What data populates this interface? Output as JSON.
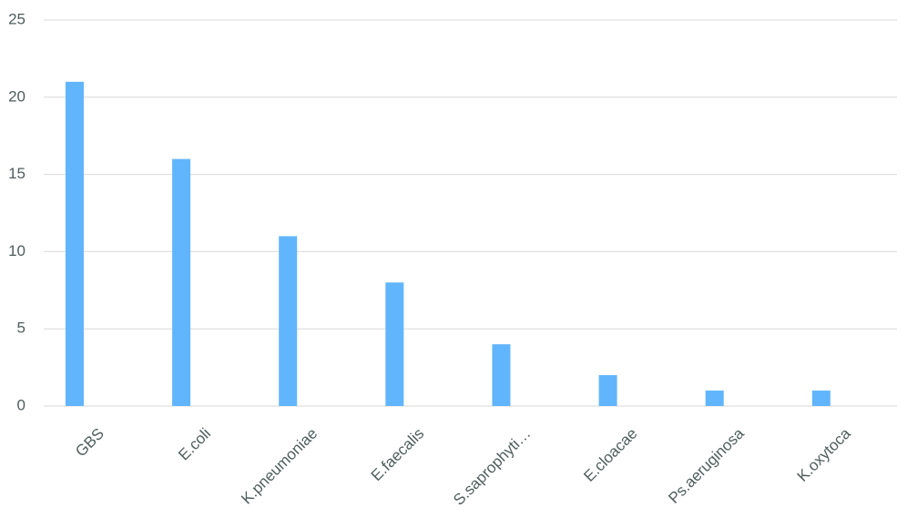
{
  "chart_data": {
    "type": "bar",
    "categories": [
      "GBS",
      "E.coli",
      "K.pneumoniae",
      "E.faecalis",
      "S.saprophyti…",
      "E.cloacae",
      "Ps.aeruginosa",
      "K.oxytoca"
    ],
    "values": [
      21,
      16,
      11,
      8,
      4,
      2,
      1,
      1
    ],
    "color": "#61b5fc",
    "ylim": [
      0,
      25
    ],
    "yticks": [
      0,
      5,
      10,
      15,
      20,
      25
    ],
    "grid": true
  }
}
